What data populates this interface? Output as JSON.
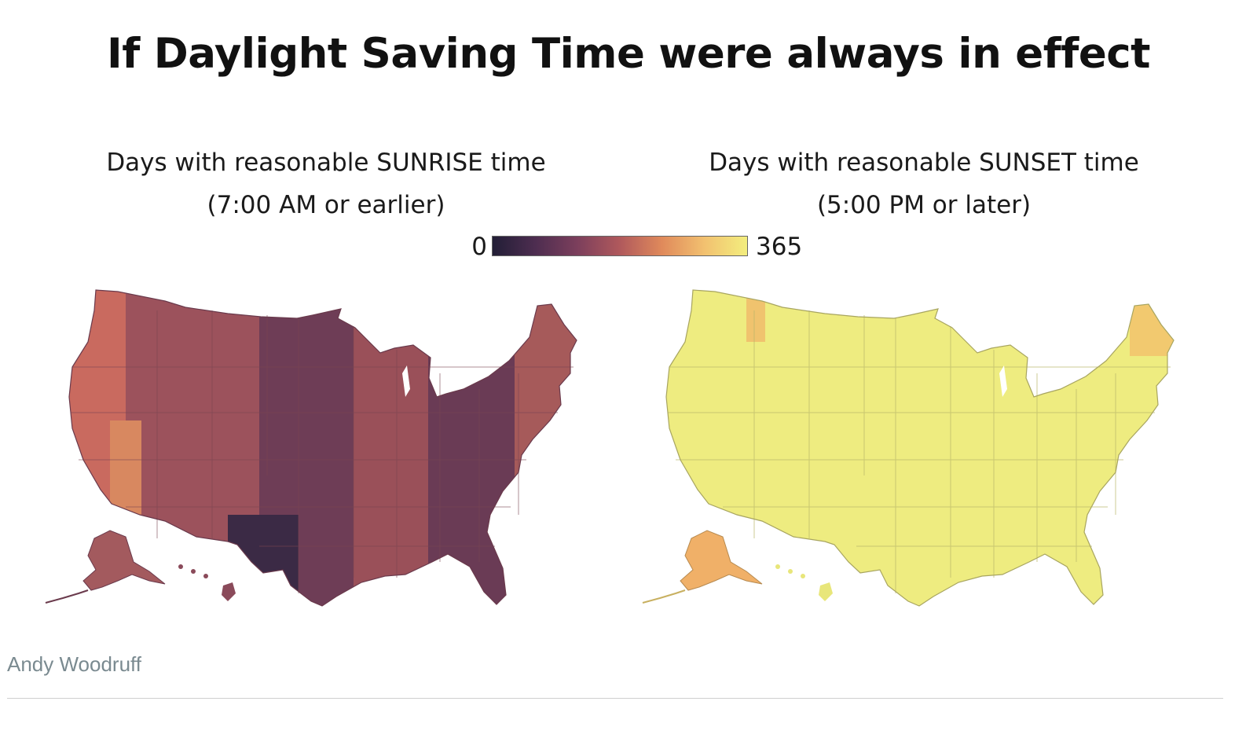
{
  "title": "If Daylight Saving Time were always in effect",
  "left_map": {
    "subtitle_line1": "Days with reasonable SUNRISE time",
    "subtitle_line2": "(7:00 AM or earlier)"
  },
  "right_map": {
    "subtitle_line1": "Days with reasonable SUNSET time",
    "subtitle_line2": "(5:00 PM or later)"
  },
  "legend": {
    "min_label": "0",
    "max_label": "365",
    "colors": [
      "#221e36",
      "#4d2d50",
      "#7c3f5c",
      "#b0595c",
      "#e08a5b",
      "#f2c170",
      "#f3ee7e"
    ]
  },
  "credit": "Andy Woodruff"
}
